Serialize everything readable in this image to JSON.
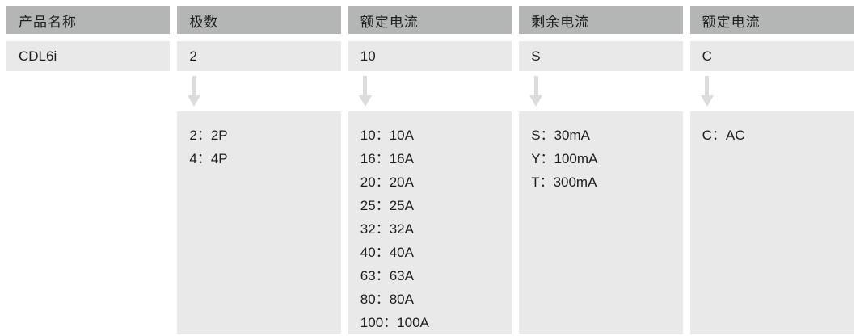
{
  "diagram": {
    "description_labels": {
      "product_name_header": "产品名称",
      "product_model": "CDL6i"
    },
    "colors": {
      "page_bg": "#ffffff",
      "header_bg": "#b4b5b5",
      "cell_bg": "#e9e9e9",
      "arrow": "#dcdcdc",
      "text": "#1d1d1d"
    },
    "columns": [
      {
        "header": "产品名称",
        "value": "CDL6i",
        "has_arrow": false,
        "options": []
      },
      {
        "header": "极数",
        "value": "2",
        "has_arrow": true,
        "options": [
          "2：2P",
          "4：4P"
        ]
      },
      {
        "header": "额定电流",
        "value": "10",
        "has_arrow": true,
        "options": [
          "10：10A",
          "16：16A",
          "20：20A",
          "25：25A",
          "32：32A",
          "40：40A",
          "63：63A",
          "80：80A",
          "100：100A"
        ]
      },
      {
        "header": "剩余电流",
        "value": "S",
        "has_arrow": true,
        "options": [
          "S：30mA",
          "Y：100mA",
          "T：300mA"
        ]
      },
      {
        "header": "额定电流",
        "value": "C",
        "has_arrow": true,
        "options": [
          "C：AC"
        ]
      }
    ]
  }
}
